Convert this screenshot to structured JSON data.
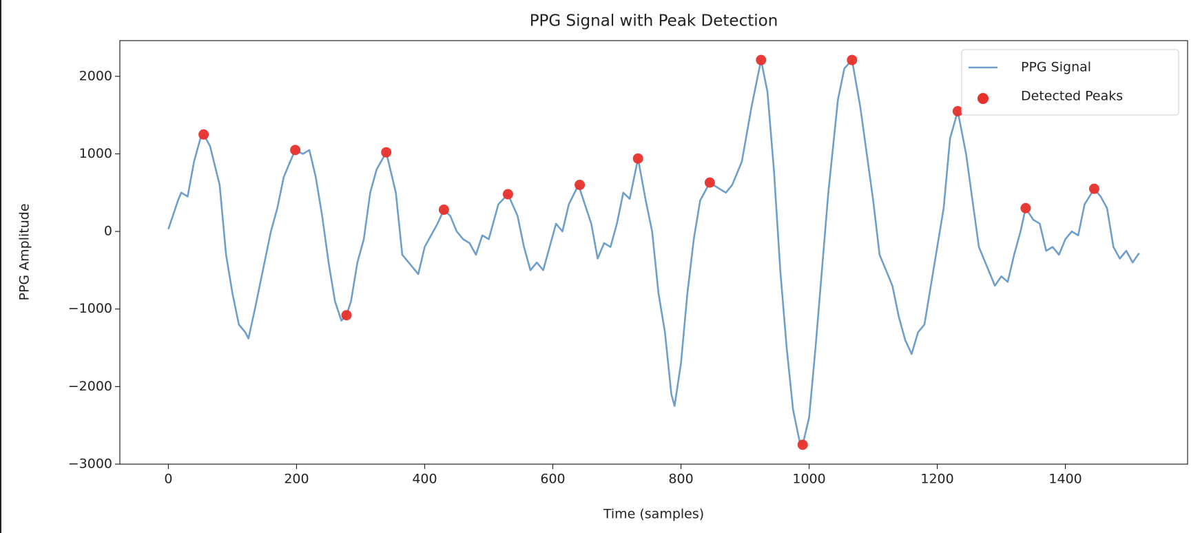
{
  "chart_data": {
    "type": "line",
    "title": "PPG Signal with Peak Detection",
    "x_label": "Time (samples)",
    "y_label": "PPG Amplitude",
    "xlim": [
      -75.75,
      1590.75
    ],
    "ylim": [
      -3000,
      2460
    ],
    "xticks": [
      0,
      200,
      400,
      600,
      800,
      1000,
      1200,
      1400
    ],
    "yticks": [
      {
        "value": -3000,
        "label": "−3000"
      },
      {
        "value": -2000,
        "label": "−2000"
      },
      {
        "value": -1000,
        "label": "−1000"
      },
      0,
      1000,
      2000
    ],
    "legend": "upper right",
    "series": [
      {
        "name": "PPG Signal",
        "type": "line",
        "color": "#6e9ecb",
        "x": [
          0,
          15,
          20,
          30,
          40,
          50,
          55,
          65,
          80,
          90,
          100,
          110,
          120,
          125,
          135,
          150,
          160,
          170,
          180,
          190,
          198,
          210,
          220,
          230,
          240,
          250,
          260,
          270,
          278,
          285,
          295,
          305,
          315,
          325,
          340,
          355,
          365,
          375,
          390,
          400,
          410,
          420,
          430,
          440,
          450,
          460,
          470,
          480,
          490,
          500,
          515,
          530,
          545,
          555,
          565,
          575,
          585,
          595,
          605,
          615,
          625,
          640,
          650,
          660,
          670,
          680,
          690,
          700,
          710,
          720,
          733,
          745,
          755,
          765,
          775,
          785,
          790,
          800,
          810,
          820,
          830,
          845,
          860,
          870,
          880,
          895,
          910,
          925,
          935,
          945,
          955,
          965,
          975,
          985,
          990,
          1000,
          1010,
          1020,
          1030,
          1045,
          1055,
          1067,
          1080,
          1090,
          1100,
          1110,
          1120,
          1130,
          1140,
          1150,
          1160,
          1170,
          1180,
          1190,
          1200,
          1210,
          1220,
          1232,
          1245,
          1255,
          1265,
          1280,
          1290,
          1300,
          1310,
          1320,
          1330,
          1338,
          1350,
          1360,
          1370,
          1380,
          1390,
          1400,
          1410,
          1420,
          1430,
          1445,
          1455,
          1465,
          1475,
          1485,
          1495,
          1505,
          1515
        ],
        "values": [
          30,
          400,
          500,
          450,
          900,
          1200,
          1250,
          1100,
          600,
          -300,
          -800,
          -1200,
          -1300,
          -1380,
          -1000,
          -400,
          0,
          300,
          700,
          900,
          1050,
          1000,
          1050,
          700,
          200,
          -400,
          -900,
          -1150,
          -1080,
          -900,
          -400,
          -100,
          500,
          800,
          1020,
          500,
          -300,
          -400,
          -550,
          -200,
          -50,
          100,
          280,
          200,
          0,
          -100,
          -150,
          -300,
          -50,
          -100,
          350,
          480,
          200,
          -200,
          -500,
          -400,
          -500,
          -200,
          100,
          0,
          350,
          600,
          350,
          100,
          -350,
          -150,
          -200,
          100,
          500,
          420,
          940,
          400,
          0,
          -800,
          -1300,
          -2100,
          -2250,
          -1700,
          -800,
          -100,
          400,
          630,
          550,
          500,
          600,
          900,
          1600,
          2210,
          1800,
          800,
          -500,
          -1500,
          -2300,
          -2700,
          -2750,
          -2400,
          -1500,
          -500,
          500,
          1700,
          2100,
          2210,
          1600,
          1000,
          400,
          -300,
          -500,
          -700,
          -1100,
          -1400,
          -1580,
          -1300,
          -1200,
          -700,
          -200,
          300,
          1200,
          1550,
          1000,
          400,
          -200,
          -500,
          -700,
          -580,
          -650,
          -300,
          0,
          300,
          150,
          100,
          -250,
          -200,
          -300,
          -100,
          0,
          -50,
          350,
          550,
          450,
          300,
          -200,
          -350,
          -250,
          -400,
          -280
        ]
      },
      {
        "name": "Detected Peaks",
        "type": "scatter",
        "color": "#e8302a",
        "x": [
          55,
          198,
          278,
          340,
          430,
          530,
          642,
          733,
          845,
          925,
          990,
          1067,
          1232,
          1338,
          1445
        ],
        "values": [
          1250,
          1050,
          -1080,
          1020,
          280,
          480,
          600,
          940,
          630,
          2210,
          -2750,
          2210,
          1550,
          300,
          550
        ]
      }
    ]
  }
}
